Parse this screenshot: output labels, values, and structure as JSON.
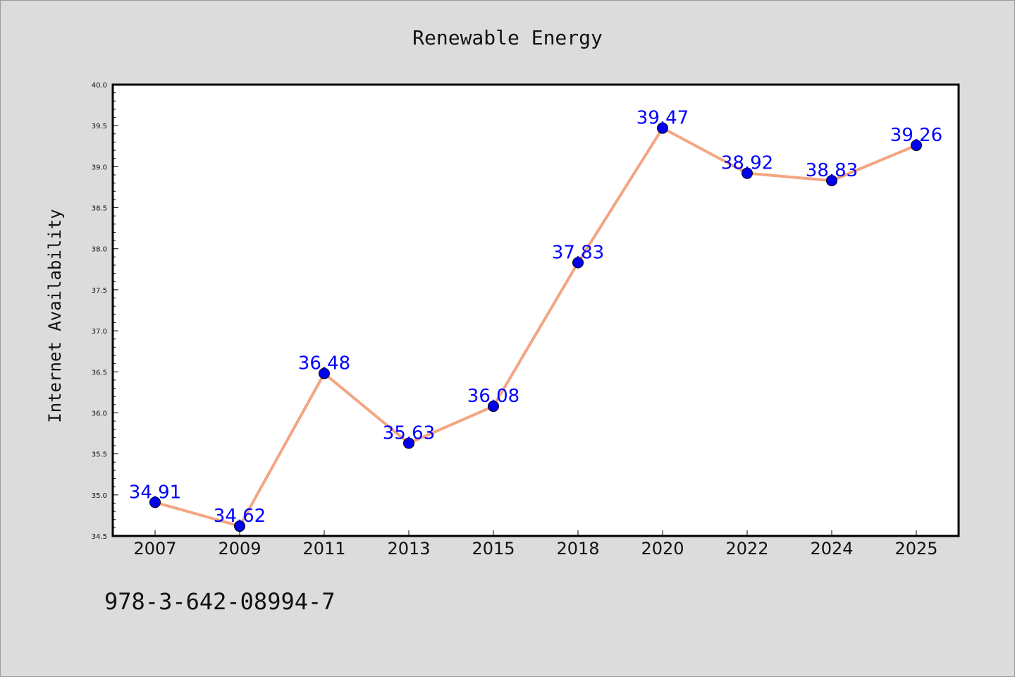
{
  "chart_data": {
    "type": "line",
    "title": "Renewable Energy",
    "xlabel": "",
    "ylabel": "Internet Availability",
    "categories": [
      "2007",
      "2009",
      "2011",
      "2013",
      "2015",
      "2018",
      "2020",
      "2022",
      "2024",
      "2025"
    ],
    "series": [
      {
        "values": [
          34.91,
          34.62,
          36.48,
          35.63,
          36.08,
          37.83,
          39.47,
          38.92,
          38.83,
          39.26
        ]
      }
    ],
    "data_labels": [
      "34.91",
      "34.62",
      "36.48",
      "35.63",
      "36.08",
      "37.83",
      "39.47",
      "38.92",
      "38.83",
      "39.26"
    ],
    "ylim": [
      34.5,
      40.0
    ],
    "yticks": [
      "34.5",
      "35.0",
      "35.5",
      "36.0",
      "36.5",
      "37.0",
      "37.5",
      "38.0",
      "38.5",
      "39.0",
      "39.5",
      "40.0"
    ],
    "grid": false,
    "legend": "none",
    "colors": {
      "line": "#f4a582",
      "marker": "#0000ee",
      "label": "#0000ff",
      "background": "#dcdcdc",
      "plot_area": "#ffffff"
    }
  },
  "footer": {
    "isbn": "978-3-642-08994-7"
  }
}
